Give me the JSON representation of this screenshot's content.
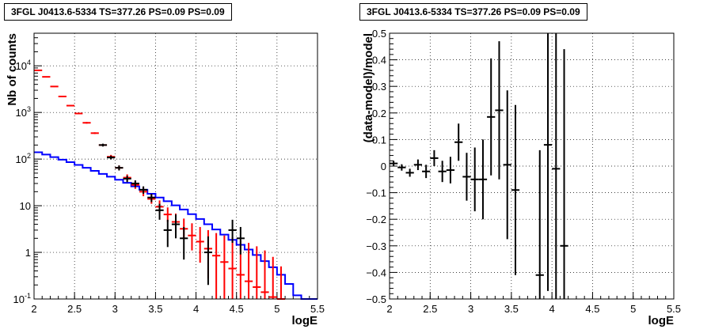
{
  "chart_data": [
    {
      "type": "step-histogram-with-errorbars",
      "title": "3FGL J0413.6-5334 TS=377.26 PS=0.09 PS=0.09",
      "xlabel": "logE",
      "ylabel": "Nb of counts",
      "xlim": [
        2,
        5.5
      ],
      "ylim": [
        0.1,
        50000
      ],
      "yscale": "log",
      "grid": true,
      "x_ticks": [
        "2",
        "2.5",
        "3",
        "3.5",
        "4",
        "4.5",
        "5",
        "5.5"
      ],
      "y_ticks": [
        "10^-1",
        "1",
        "10",
        "10^2",
        "10^3",
        "10^4"
      ],
      "series": [
        {
          "color": "#0000ff",
          "style": "step",
          "bin_edges": [
            2.0,
            2.1,
            2.2,
            2.3,
            2.4,
            2.5,
            2.6,
            2.7,
            2.8,
            2.9,
            3.0,
            3.1,
            3.2,
            3.3,
            3.4,
            3.5,
            3.6,
            3.7,
            3.8,
            3.9,
            4.0,
            4.1,
            4.2,
            4.3,
            4.4,
            4.5,
            4.6,
            4.7,
            4.8,
            4.9,
            5.0,
            5.1,
            5.2,
            5.3,
            5.4,
            5.5
          ],
          "values": [
            140,
            125,
            110,
            97,
            86,
            75,
            65,
            56,
            48,
            42,
            36,
            31,
            26,
            22,
            18,
            15,
            12.5,
            10.2,
            8.3,
            6.6,
            5.2,
            4.0,
            3.1,
            2.4,
            1.85,
            1.45,
            1.15,
            0.88,
            0.65,
            0.48,
            0.33,
            0.21,
            0.12,
            0.1,
            0.1
          ]
        },
        {
          "color": "#ff0000",
          "style": "errorbar",
          "x": [
            2.05,
            2.15,
            2.25,
            2.35,
            2.45,
            2.55,
            2.65,
            2.75,
            2.85,
            2.95,
            3.05,
            3.15,
            3.25,
            3.35,
            3.45,
            3.55,
            3.65,
            3.75,
            3.85,
            3.95,
            4.05,
            4.15,
            4.25,
            4.35,
            4.45,
            4.55,
            4.65,
            4.75,
            4.85,
            4.95,
            5.05
          ],
          "y": [
            8000,
            5800,
            3600,
            2200,
            1400,
            950,
            600,
            360,
            200,
            112,
            65,
            40,
            28,
            20,
            14,
            9.5,
            6.5,
            4.5,
            3.2,
            2.3,
            1.7,
            1.2,
            0.85,
            0.62,
            0.45,
            0.33,
            0.24,
            0.18,
            0.14,
            0.11,
            0.1
          ],
          "y_low": [
            7800,
            5650,
            3500,
            2130,
            1360,
            920,
            575,
            345,
            190,
            102,
            58,
            34,
            23,
            16,
            11,
            6.9,
            4.5,
            3.0,
            1.9,
            1.1,
            0.6,
            0.28,
            0.1,
            0.1,
            0.1,
            0.1,
            0.1,
            0.1,
            0.1,
            0.1,
            0.1
          ],
          "y_high": [
            8200,
            5950,
            3700,
            2270,
            1440,
            980,
            625,
            375,
            210,
            123,
            73,
            47,
            34,
            25,
            18,
            13,
            9.2,
            6.8,
            5.3,
            4.2,
            3.5,
            3.0,
            2.6,
            2.3,
            2.1,
            1.8,
            1.6,
            1.35,
            1.1,
            0.8,
            0.5
          ]
        },
        {
          "color": "#000000",
          "style": "errorbar",
          "x": [
            2.85,
            2.95,
            3.05,
            3.15,
            3.25,
            3.35,
            3.45,
            3.55,
            3.65,
            3.75,
            3.85,
            4.15,
            4.45,
            4.55
          ],
          "y": [
            200,
            108,
            65,
            38,
            30,
            22,
            15,
            8,
            3,
            4,
            2,
            1,
            3,
            2
          ],
          "y_low": [
            186,
            98,
            57,
            32,
            25,
            18,
            12,
            5,
            1.3,
            2,
            0.7,
            0.2,
            1.6,
            0.9
          ],
          "y_high": [
            214,
            118,
            73,
            44,
            35,
            26,
            18,
            11,
            5,
            6.5,
            3.5,
            2.2,
            5,
            3.5
          ]
        }
      ]
    },
    {
      "type": "errorbar",
      "title": "3FGL J0413.6-5334 TS=377.26 PS=0.09 PS=0.09",
      "xlabel": "logE",
      "ylabel": "(data-model)/model",
      "xlim": [
        2,
        5.5
      ],
      "ylim": [
        -0.5,
        0.5
      ],
      "grid": true,
      "x_ticks": [
        "2",
        "2.5",
        "3",
        "3.5",
        "4",
        "4.5",
        "5",
        "5.5"
      ],
      "y_ticks": [
        "−0.5",
        "−0.4",
        "−0.3",
        "−0.2",
        "−0.1",
        "0",
        "0.1",
        "0.2",
        "0.3",
        "0.4",
        "0.5"
      ],
      "series": [
        {
          "color": "#000000",
          "x": [
            2.05,
            2.15,
            2.25,
            2.35,
            2.45,
            2.55,
            2.65,
            2.75,
            2.85,
            2.95,
            3.05,
            3.15,
            3.25,
            3.35,
            3.45,
            3.55,
            3.85,
            3.95,
            4.05,
            4.15
          ],
          "y": [
            0.01,
            -0.005,
            -0.025,
            0.005,
            -0.02,
            0.03,
            -0.02,
            -0.015,
            0.09,
            -0.04,
            -0.05,
            -0.05,
            0.185,
            0.21,
            0.005,
            -0.09,
            -0.41,
            0.08,
            -0.01,
            -0.3
          ],
          "y_err": [
            0.01,
            0.012,
            0.015,
            0.02,
            0.025,
            0.03,
            0.04,
            0.05,
            0.07,
            0.09,
            0.12,
            0.15,
            0.22,
            0.26,
            0.28,
            0.32,
            0.47,
            0.55,
            0.6,
            0.74
          ]
        }
      ]
    }
  ]
}
